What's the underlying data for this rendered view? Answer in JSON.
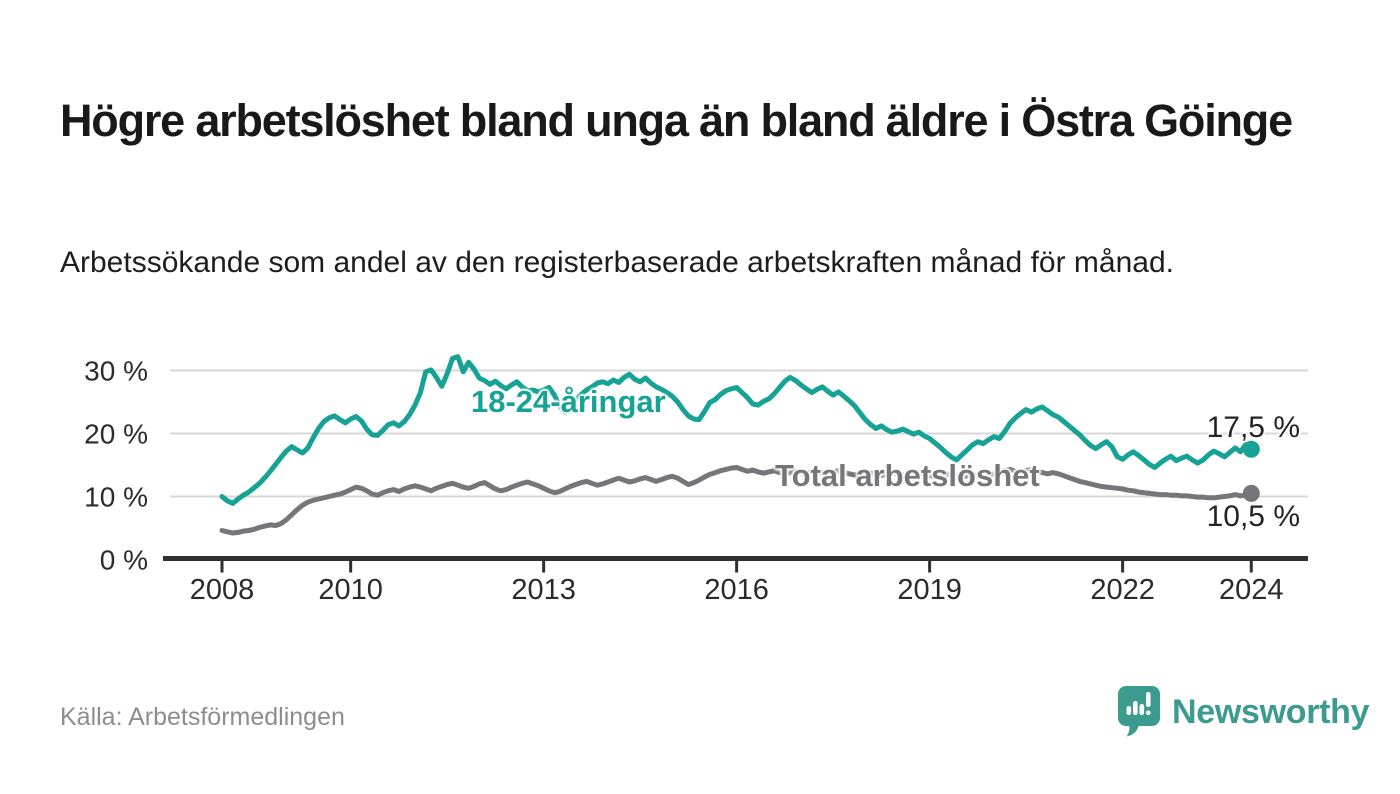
{
  "header": {
    "title": "Högre arbetslöshet bland unga än bland äldre i Östra Göinge",
    "subtitle": "Arbetssökande som andel av den registerbaserade arbetskraften månad för månad."
  },
  "footer": {
    "source": "Källa: Arbetsförmedlingen",
    "brand": "Newsworthy",
    "brand_icon": "newsworthy-speech-bubble-bar-chart-icon"
  },
  "colors": {
    "youth_line": "#16a294",
    "total_line": "#76767a",
    "gridline": "#d7d7d7",
    "axis": "#2f2f2f",
    "tick_label": "#2b2b2b",
    "end_label": "#242424",
    "title_text": "#191919",
    "source_text": "#8d8d8d",
    "brand_teal": "#3c9b8f"
  },
  "chart_data": {
    "type": "line",
    "title": "Högre arbetslöshet bland unga än bland äldre i Östra Göinge",
    "subtitle": "Arbetssökande som andel av den registerbaserade arbetskraften månad för månad.",
    "frequency": "monthly",
    "x_start_year": 2008,
    "points_per_year": 12,
    "xlim": [
      2008,
      2024.9
    ],
    "ylim": [
      0,
      33
    ],
    "grid": true,
    "legend": "inline-labels",
    "y_ticks": [
      {
        "label": "0 %",
        "value": 0
      },
      {
        "label": "10 %",
        "value": 10
      },
      {
        "label": "20 %",
        "value": 20
      },
      {
        "label": "30 %",
        "value": 30
      }
    ],
    "x_ticks": [
      {
        "label": "2008",
        "year": 2008
      },
      {
        "label": "2010",
        "year": 2010
      },
      {
        "label": "2013",
        "year": 2013
      },
      {
        "label": "2016",
        "year": 2016
      },
      {
        "label": "2019",
        "year": 2019
      },
      {
        "label": "2022",
        "year": 2022
      },
      {
        "label": "2024",
        "year": 2024
      }
    ],
    "series": [
      {
        "name": "18-24-åringar",
        "color": "#16a294",
        "end_label": "17,5 %",
        "end_value": 17.5,
        "values": [
          10.0,
          9.3,
          8.9,
          9.6,
          10.2,
          10.7,
          11.4,
          12.1,
          13.0,
          14.0,
          15.1,
          16.2,
          17.2,
          17.9,
          17.4,
          16.9,
          17.7,
          19.3,
          20.8,
          21.9,
          22.5,
          22.8,
          22.2,
          21.7,
          22.3,
          22.7,
          22.0,
          20.7,
          19.8,
          19.7,
          20.5,
          21.4,
          21.7,
          21.2,
          21.9,
          23.0,
          24.5,
          26.5,
          29.8,
          30.1,
          28.9,
          27.5,
          29.5,
          31.9,
          32.2,
          29.8,
          31.3,
          30.2,
          28.8,
          28.4,
          27.8,
          28.3,
          27.6,
          27.1,
          27.7,
          28.2,
          27.4,
          26.8,
          26.9,
          26.6,
          26.9,
          27.3,
          26.1,
          24.3,
          23.4,
          24.2,
          25.3,
          26.2,
          26.9,
          27.4,
          28.0,
          28.2,
          27.9,
          28.5,
          28.1,
          28.9,
          29.4,
          28.6,
          28.2,
          28.8,
          28.0,
          27.4,
          27.0,
          26.5,
          25.9,
          25.0,
          23.8,
          22.8,
          22.3,
          22.2,
          23.5,
          24.9,
          25.4,
          26.2,
          26.8,
          27.1,
          27.3,
          26.5,
          25.7,
          24.7,
          24.5,
          25.1,
          25.5,
          26.3,
          27.3,
          28.3,
          28.9,
          28.4,
          27.7,
          27.1,
          26.5,
          27.0,
          27.4,
          26.7,
          26.1,
          26.6,
          25.9,
          25.2,
          24.4,
          23.3,
          22.2,
          21.4,
          20.8,
          21.2,
          20.6,
          20.2,
          20.4,
          20.7,
          20.3,
          19.9,
          20.2,
          19.6,
          19.2,
          18.5,
          17.8,
          17.0,
          16.3,
          15.8,
          16.6,
          17.4,
          18.2,
          18.7,
          18.4,
          19.0,
          19.5,
          19.2,
          20.3,
          21.6,
          22.5,
          23.2,
          23.8,
          23.4,
          23.9,
          24.2,
          23.6,
          23.0,
          22.6,
          21.9,
          21.2,
          20.5,
          19.8,
          18.9,
          18.1,
          17.6,
          18.2,
          18.7,
          17.9,
          16.3,
          15.9,
          16.6,
          17.1,
          16.5,
          15.8,
          15.1,
          14.6,
          15.3,
          15.9,
          16.4,
          15.7,
          16.1,
          16.4,
          15.8,
          15.3,
          15.8,
          16.6,
          17.2,
          16.8,
          16.3,
          17.0,
          17.7,
          17.1,
          18.3,
          17.5
        ]
      },
      {
        "name": "Total arbetslöshet",
        "color": "#76767a",
        "end_label": "10,5 %",
        "end_value": 10.5,
        "values": [
          4.6,
          4.4,
          4.2,
          4.3,
          4.5,
          4.6,
          4.8,
          5.1,
          5.3,
          5.5,
          5.4,
          5.7,
          6.3,
          7.1,
          7.9,
          8.6,
          9.1,
          9.4,
          9.6,
          9.8,
          10.0,
          10.2,
          10.4,
          10.7,
          11.1,
          11.5,
          11.3,
          10.9,
          10.4,
          10.2,
          10.6,
          10.9,
          11.1,
          10.8,
          11.2,
          11.5,
          11.7,
          11.5,
          11.2,
          10.9,
          11.3,
          11.6,
          11.9,
          12.1,
          11.8,
          11.5,
          11.3,
          11.6,
          12.0,
          12.2,
          11.7,
          11.2,
          10.9,
          11.1,
          11.5,
          11.8,
          12.1,
          12.3,
          12.0,
          11.7,
          11.3,
          10.9,
          10.6,
          10.8,
          11.2,
          11.6,
          11.9,
          12.2,
          12.4,
          12.1,
          11.8,
          12.0,
          12.3,
          12.6,
          12.9,
          12.6,
          12.3,
          12.5,
          12.8,
          13.0,
          12.7,
          12.4,
          12.7,
          13.0,
          13.2,
          12.9,
          12.4,
          11.9,
          12.2,
          12.6,
          13.1,
          13.5,
          13.8,
          14.1,
          14.3,
          14.5,
          14.6,
          14.3,
          14.0,
          14.2,
          13.9,
          13.7,
          13.9,
          14.1,
          13.8,
          13.6,
          13.8,
          14.0,
          13.8,
          13.6,
          13.9,
          14.1,
          13.8,
          13.6,
          13.9,
          14.1,
          13.8,
          13.6,
          13.4,
          13.7,
          13.9,
          13.7,
          13.5,
          13.3,
          13.6,
          13.8,
          13.6,
          13.4,
          13.2,
          13.5,
          13.7,
          13.5,
          13.3,
          13.1,
          13.4,
          13.6,
          13.4,
          13.2,
          13.0,
          13.3,
          13.5,
          13.3,
          13.1,
          13.4,
          13.6,
          13.8,
          14.1,
          14.3,
          14.0,
          13.8,
          14.1,
          14.3,
          14.0,
          13.8,
          13.6,
          13.8,
          13.6,
          13.3,
          13.0,
          12.7,
          12.4,
          12.2,
          12.0,
          11.8,
          11.6,
          11.5,
          11.4,
          11.3,
          11.2,
          11.0,
          10.9,
          10.7,
          10.6,
          10.5,
          10.4,
          10.3,
          10.3,
          10.2,
          10.2,
          10.1,
          10.1,
          10.0,
          9.9,
          9.9,
          9.8,
          9.8,
          9.9,
          10.0,
          10.1,
          10.3,
          10.1,
          10.2,
          10.5
        ]
      }
    ]
  }
}
